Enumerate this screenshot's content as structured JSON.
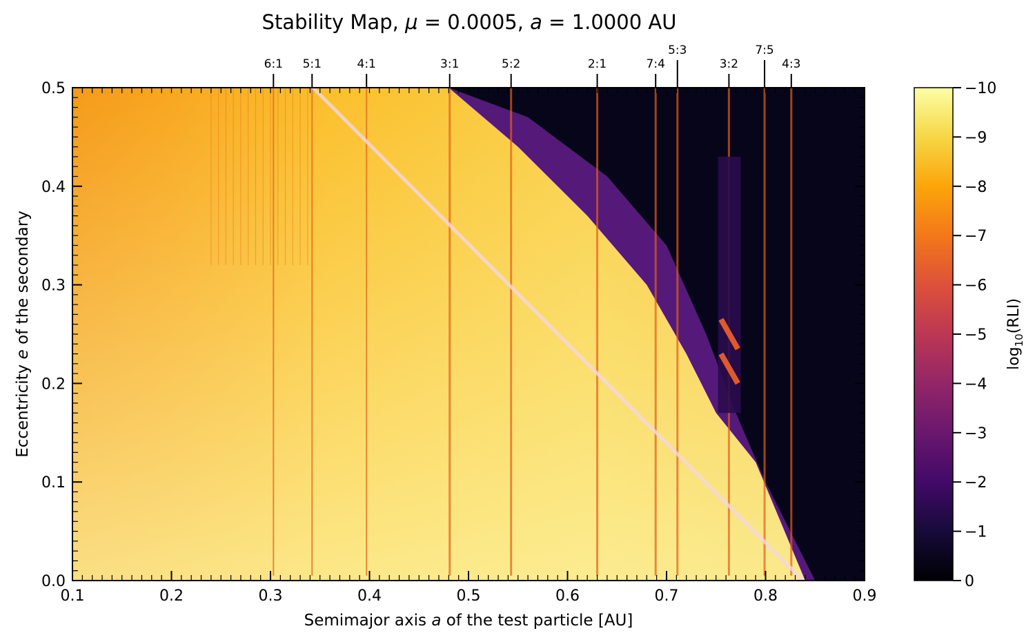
{
  "chart_data": {
    "type": "heatmap",
    "title_prefix": "Stability Map, ",
    "title_mu_symbol": "μ",
    "title_mu_value": " = 0.0005, ",
    "title_a_symbol": "a",
    "title_a_value": " = 1.0000 AU",
    "xlabel_prefix": "Semimajor axis ",
    "xlabel_symbol": "a",
    "xlabel_suffix": " of the test particle [AU]",
    "ylabel_prefix": "Eccentricity ",
    "ylabel_symbol": "e",
    "ylabel_suffix": " of the secondary",
    "xlim": [
      0.1,
      0.9
    ],
    "ylim": [
      0.0,
      0.5
    ],
    "x_ticks": [
      "0.1",
      "0.2",
      "0.3",
      "0.4",
      "0.5",
      "0.6",
      "0.7",
      "0.8",
      "0.9"
    ],
    "y_ticks": [
      "0.0",
      "0.1",
      "0.2",
      "0.3",
      "0.4",
      "0.5"
    ],
    "colorbar": {
      "label_prefix": "log",
      "label_sub": "10",
      "label_suffix": "(RLI)",
      "range": [
        0,
        -10
      ],
      "ticks": [
        "0",
        "−1",
        "−2",
        "−3",
        "−4",
        "−5",
        "−6",
        "−7",
        "−8",
        "−9",
        "−10"
      ],
      "colormap": "inferno"
    },
    "resonances": [
      {
        "label": "6:1",
        "a": 0.303
      },
      {
        "label": "5:1",
        "a": 0.342
      },
      {
        "label": "4:1",
        "a": 0.397
      },
      {
        "label": "3:1",
        "a": 0.481
      },
      {
        "label": "5:2",
        "a": 0.543
      },
      {
        "label": "2:1",
        "a": 0.63
      },
      {
        "label": "7:4",
        "a": 0.689
      },
      {
        "label": "5:3",
        "a": 0.711,
        "long_tick": true
      },
      {
        "label": "3:2",
        "a": 0.763
      },
      {
        "label": "7:5",
        "a": 0.799,
        "long_tick": true
      },
      {
        "label": "4:3",
        "a": 0.826
      }
    ],
    "stability_boundary": [
      [
        0.343,
        0.5
      ],
      [
        0.838,
        0.0
      ]
    ],
    "chaotic_edge": [
      [
        0.355,
        0.5
      ],
      [
        0.4,
        0.5
      ],
      [
        0.48,
        0.5
      ],
      [
        0.55,
        0.44
      ],
      [
        0.62,
        0.37
      ],
      [
        0.68,
        0.3
      ],
      [
        0.72,
        0.23
      ],
      [
        0.75,
        0.17
      ],
      [
        0.79,
        0.12
      ],
      [
        0.84,
        0.0
      ]
    ],
    "unstable_edge": [
      [
        0.48,
        0.5
      ],
      [
        0.56,
        0.47
      ],
      [
        0.64,
        0.41
      ],
      [
        0.7,
        0.34
      ],
      [
        0.74,
        0.25
      ],
      [
        0.77,
        0.17
      ],
      [
        0.8,
        0.1
      ],
      [
        0.85,
        0.0
      ]
    ],
    "stripes": [
      0.303,
      0.342,
      0.397,
      0.481,
      0.543,
      0.63,
      0.689,
      0.711,
      0.763,
      0.799,
      0.826
    ],
    "island_3_2": {
      "a_range": [
        0.752,
        0.775
      ],
      "e_range": [
        0.17,
        0.43
      ]
    }
  }
}
